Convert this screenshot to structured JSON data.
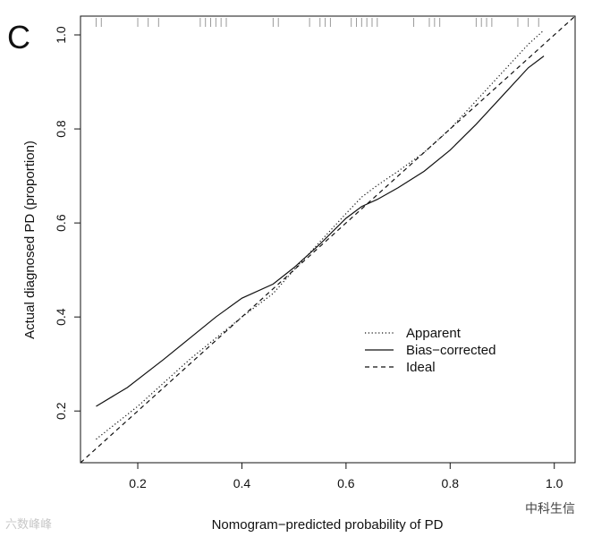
{
  "panel_label": "C",
  "chart_data": {
    "type": "line",
    "title": "",
    "xlabel": "Nomogram−predicted probability of PD",
    "ylabel": "Actual diagnosed PD (proportion)",
    "xlim": [
      0.09,
      1.04
    ],
    "ylim": [
      0.09,
      1.04
    ],
    "x_ticks": [
      0.2,
      0.4,
      0.6,
      0.8,
      1.0
    ],
    "y_ticks": [
      0.2,
      0.4,
      0.6,
      0.8,
      1.0
    ],
    "x_tick_labels": [
      "0.2",
      "0.4",
      "0.6",
      "0.8",
      "1.0"
    ],
    "y_tick_labels": [
      "0.2",
      "0.4",
      "0.6",
      "0.8",
      "1.0"
    ],
    "grid": false,
    "legend_position": "bottom-right",
    "series": [
      {
        "name": "Apparent",
        "style": "dotted",
        "x": [
          0.12,
          0.2,
          0.3,
          0.4,
          0.46,
          0.5,
          0.55,
          0.6,
          0.63,
          0.66,
          0.7,
          0.75,
          0.8,
          0.85,
          0.9,
          0.95,
          0.98
        ],
        "y": [
          0.14,
          0.21,
          0.31,
          0.4,
          0.45,
          0.5,
          0.56,
          0.62,
          0.655,
          0.68,
          0.71,
          0.75,
          0.8,
          0.86,
          0.92,
          0.98,
          1.01
        ]
      },
      {
        "name": "Bias−corrected",
        "style": "solid",
        "x": [
          0.12,
          0.18,
          0.25,
          0.3,
          0.35,
          0.4,
          0.46,
          0.5,
          0.55,
          0.6,
          0.63,
          0.66,
          0.7,
          0.75,
          0.8,
          0.85,
          0.9,
          0.95,
          0.98
        ],
        "y": [
          0.21,
          0.25,
          0.31,
          0.355,
          0.4,
          0.44,
          0.47,
          0.505,
          0.555,
          0.61,
          0.635,
          0.65,
          0.675,
          0.71,
          0.755,
          0.81,
          0.87,
          0.93,
          0.955
        ]
      },
      {
        "name": "Ideal",
        "style": "dashed",
        "x": [
          0.09,
          1.04
        ],
        "y": [
          0.09,
          1.04
        ]
      }
    ],
    "rug_x": [
      0.12,
      0.13,
      0.2,
      0.22,
      0.24,
      0.32,
      0.33,
      0.34,
      0.35,
      0.36,
      0.37,
      0.46,
      0.47,
      0.53,
      0.55,
      0.56,
      0.57,
      0.61,
      0.62,
      0.63,
      0.64,
      0.65,
      0.66,
      0.73,
      0.76,
      0.77,
      0.78,
      0.85,
      0.86,
      0.87,
      0.88,
      0.93,
      0.95,
      0.97
    ]
  },
  "watermarks": {
    "left": "六数峰峰",
    "right": "中科生信"
  }
}
